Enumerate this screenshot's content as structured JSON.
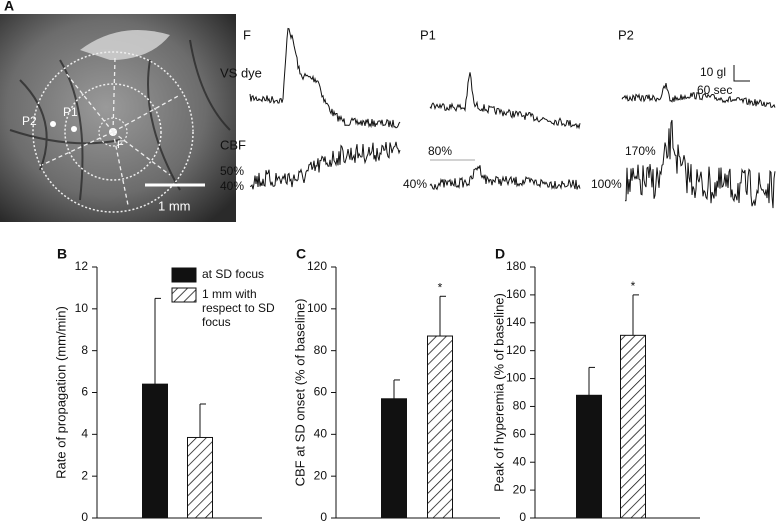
{
  "panel_a": {
    "label": "A",
    "photo_labels": [
      "P2",
      "P1",
      "F"
    ],
    "scale_bar": "1 mm",
    "columns": [
      "F",
      "P1",
      "P2"
    ],
    "rows": [
      "VS dye",
      "CBF"
    ],
    "scale_y": "10 gl",
    "scale_x": "60 sec",
    "cbf_levels": [
      "50%",
      "40%",
      "80%",
      "40%",
      "170%",
      "100%"
    ]
  },
  "chart_data": [
    {
      "type": "bar",
      "panel": "B",
      "ylabel": "Rate of propagation (mm/min)",
      "ylim": [
        0,
        12
      ],
      "yticks": [
        0,
        2,
        4,
        6,
        8,
        10,
        12
      ],
      "legend": "upper right",
      "series": [
        {
          "name": "at SD focus",
          "color": "#111111",
          "values": [
            6.4
          ],
          "errors": [
            4.1
          ]
        },
        {
          "name": "1 mm with respect to SD focus",
          "color": "#111111",
          "pattern": "hatch",
          "values": [
            3.85
          ],
          "errors": [
            1.6
          ]
        }
      ]
    },
    {
      "type": "bar",
      "panel": "C",
      "ylabel": "CBF at SD onset (% of baseline)",
      "ylim": [
        0,
        120
      ],
      "yticks": [
        0,
        20,
        40,
        60,
        80,
        100,
        120
      ],
      "series": [
        {
          "color": "#111111",
          "values": [
            57
          ],
          "errors": [
            9
          ]
        },
        {
          "color": "#111111",
          "pattern": "hatch",
          "values": [
            87
          ],
          "errors": [
            19
          ],
          "significance": "*"
        }
      ]
    },
    {
      "type": "bar",
      "panel": "D",
      "ylabel": "Peak of hyperemia (% of baseline)",
      "ylim": [
        0,
        180
      ],
      "yticks": [
        0,
        20,
        40,
        60,
        80,
        100,
        120,
        140,
        160,
        180
      ],
      "series": [
        {
          "color": "#111111",
          "values": [
            88
          ],
          "errors": [
            20
          ]
        },
        {
          "color": "#111111",
          "pattern": "hatch",
          "values": [
            131
          ],
          "errors": [
            29
          ],
          "significance": "*"
        }
      ]
    }
  ]
}
